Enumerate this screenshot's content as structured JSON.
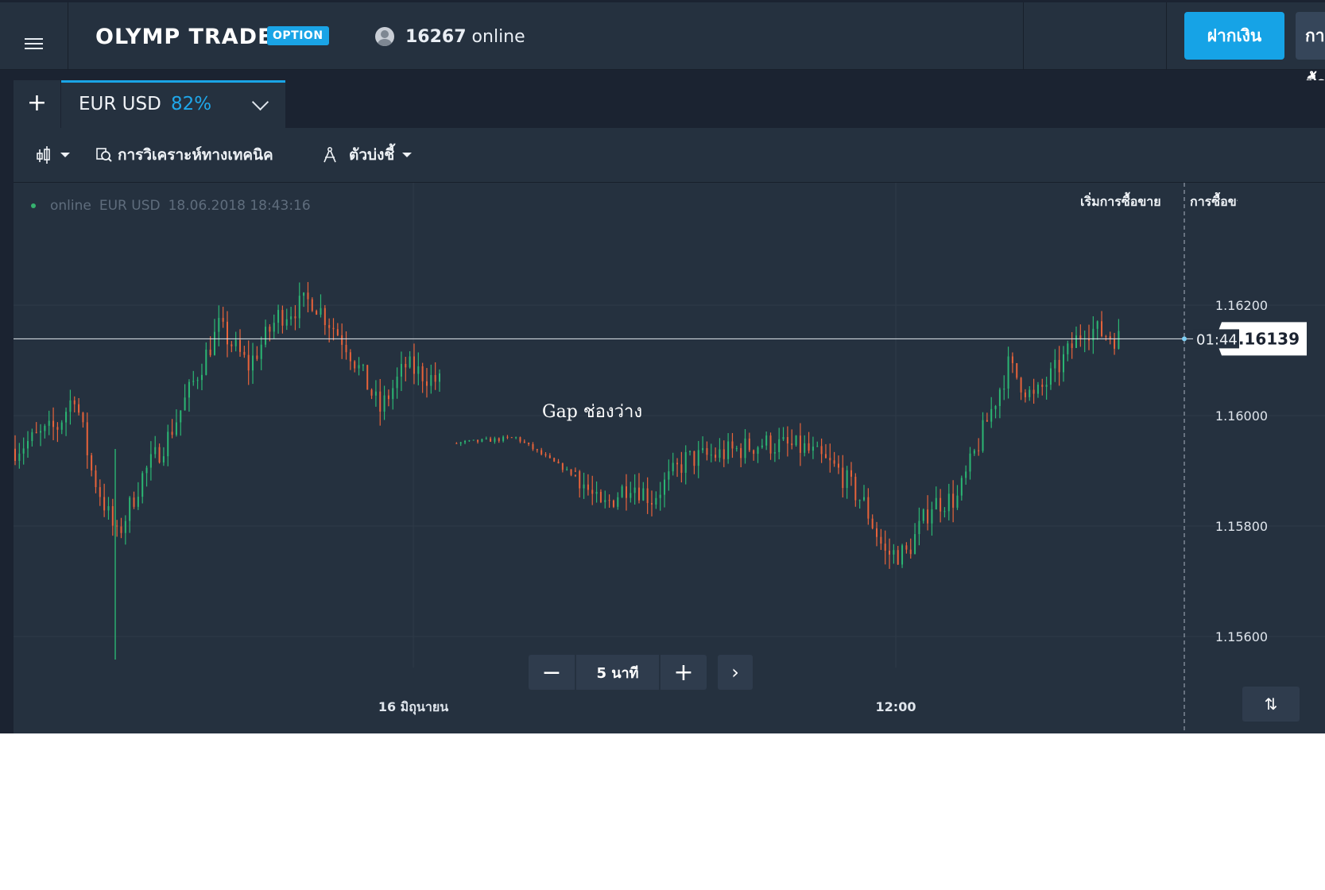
{
  "header": {
    "logo_text": "OLYMP TRADE",
    "badge": "OPTION",
    "online_count": "16267",
    "online_label": "online",
    "deposit_label": "ฝากเงิน",
    "trade_label": "การซื้อขาย"
  },
  "tabs": {
    "add_label": "+",
    "active": {
      "pair": "EUR USD",
      "payout": "82%"
    }
  },
  "toolbar": {
    "chart_type_icon": "candlestick-icon",
    "analysis_label": "การวิเคราะห์ทางเทคนิค",
    "indicators_label": "ตัวบ่งชี้"
  },
  "chart": {
    "status": {
      "label": "online",
      "pair": "EUR USD",
      "datetime": "18.06.2018 18:43:16"
    },
    "start_label": "เริ่มการซื้อขาย",
    "expiry_label": "การซื้อขาย",
    "annotation": "Gap ช่องว่าง",
    "timer": "01:44",
    "price_display": "1.16139",
    "zoom": {
      "minus": "−",
      "value": "5 นาที",
      "plus": "+",
      "next": "›"
    },
    "colors": {
      "up": "#2bb673",
      "down": "#e8633a",
      "background": "#25313f",
      "grid": "#2e3a49"
    }
  },
  "chart_data": {
    "type": "candlestick",
    "symbol": "EUR USD",
    "timeframe": "5 นาที",
    "y_ticks": [
      "1.16200",
      "1.16000",
      "1.15800",
      "1.15600"
    ],
    "ylim": [
      1.1555,
      1.1632
    ],
    "x_ticks": [
      "16 มิถุนายน",
      "12:00"
    ],
    "current_price": 1.16139,
    "segments": [
      {
        "from": 0,
        "to": 100,
        "path": [
          [
            0,
            1.1594
          ],
          [
            10,
            1.1598
          ],
          [
            14,
            1.1604
          ],
          [
            18,
            1.159
          ],
          [
            24,
            1.1578
          ],
          [
            30,
            1.1589
          ],
          [
            36,
            1.1596
          ],
          [
            42,
            1.1606
          ],
          [
            48,
            1.1616
          ],
          [
            55,
            1.1609
          ],
          [
            62,
            1.1618
          ],
          [
            70,
            1.1621
          ],
          [
            78,
            1.1613
          ],
          [
            86,
            1.1601
          ],
          [
            92,
            1.1609
          ],
          [
            100,
            1.1606
          ]
        ]
      },
      {
        "from": 104,
        "to": 132,
        "path": [
          [
            104,
            1.1595
          ],
          [
            118,
            1.1596
          ],
          [
            132,
            1.1589
          ]
        ]
      },
      {
        "from": 132,
        "to": 260,
        "path": [
          [
            132,
            1.159
          ],
          [
            138,
            1.1583
          ],
          [
            145,
            1.1588
          ],
          [
            150,
            1.1585
          ],
          [
            158,
            1.1592
          ],
          [
            166,
            1.1593
          ],
          [
            176,
            1.1595
          ],
          [
            186,
            1.1594
          ],
          [
            194,
            1.159
          ],
          [
            200,
            1.1584
          ],
          [
            205,
            1.1575
          ],
          [
            210,
            1.1575
          ],
          [
            216,
            1.1584
          ],
          [
            222,
            1.1585
          ],
          [
            228,
            1.1597
          ],
          [
            234,
            1.1609
          ],
          [
            240,
            1.1603
          ],
          [
            246,
            1.1609
          ],
          [
            252,
            1.1616
          ],
          [
            260,
            1.1614
          ]
        ]
      }
    ]
  }
}
